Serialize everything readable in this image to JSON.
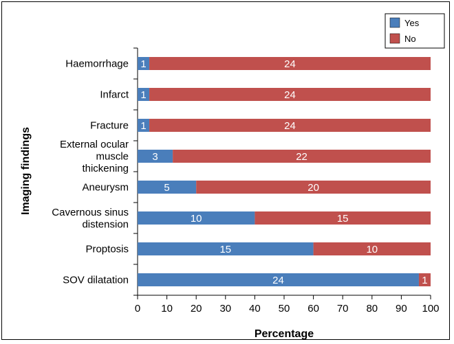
{
  "chart_data": {
    "type": "bar",
    "orientation": "horizontal",
    "stacked": true,
    "categories": [
      "Haemorrhage",
      "Infarct",
      "Fracture",
      "External ocular muscle thickening",
      "Aneurysm",
      "Cavernous sinus distension",
      "Proptosis",
      "SOV dilatation"
    ],
    "category_lines": [
      [
        "Haemorrhage"
      ],
      [
        "Infarct"
      ],
      [
        "Fracture"
      ],
      [
        "External ocular",
        "muscle",
        "thickening"
      ],
      [
        "Aneurysm"
      ],
      [
        "Cavernous sinus",
        "distension"
      ],
      [
        "Proptosis"
      ],
      [
        "SOV dilatation"
      ]
    ],
    "series": [
      {
        "name": "Yes",
        "color": "#4a7ebb",
        "values": [
          1,
          1,
          1,
          3,
          5,
          10,
          15,
          24
        ]
      },
      {
        "name": "No",
        "color": "#c0504d",
        "values": [
          24,
          24,
          24,
          22,
          20,
          15,
          10,
          1
        ]
      }
    ],
    "value_unit": "count",
    "xlabel": "Percentage",
    "ylabel": "Imaging findings",
    "xlim": [
      0,
      100
    ],
    "xticks": [
      "0",
      "10",
      "20",
      "30",
      "40",
      "50",
      "60",
      "70",
      "80",
      "90",
      "100"
    ],
    "legend_position": "top-right",
    "grid": false
  }
}
